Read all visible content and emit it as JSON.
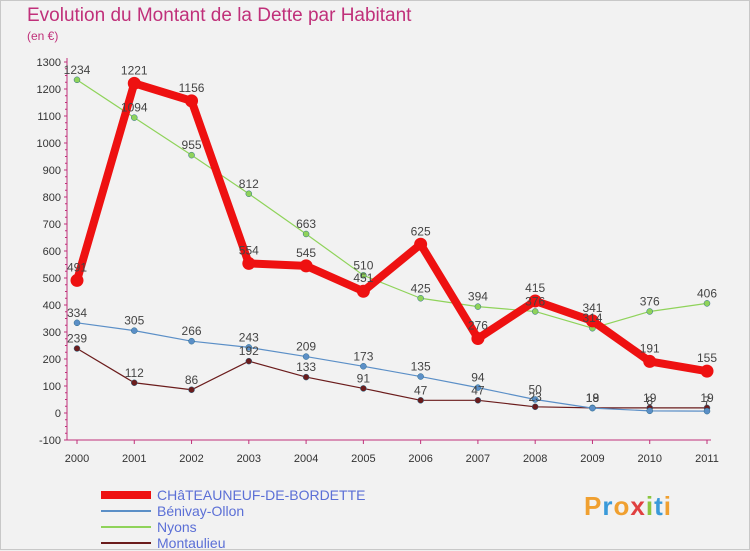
{
  "header": {
    "title": "Evolution du Montant de la Dette par Habitant",
    "subtitle": "(en €)"
  },
  "logo": {
    "letters": [
      "P",
      "r",
      "o",
      "x",
      "i",
      "t",
      "i"
    ],
    "colors": [
      "#f0a030",
      "#3a9ad9",
      "#f0a030",
      "#e04040",
      "#8cc63f",
      "#3a9ad9",
      "#f0a030"
    ]
  },
  "chart_data": {
    "type": "line",
    "x": [
      "2000",
      "2001",
      "2002",
      "2003",
      "2004",
      "2005",
      "2006",
      "2007",
      "2008",
      "2009",
      "2010",
      "2011"
    ],
    "ylim": [
      -100,
      1300
    ],
    "yticks": [
      "-100",
      "0",
      "100",
      "200",
      "300",
      "400",
      "500",
      "600",
      "700",
      "800",
      "900",
      "1000",
      "1100",
      "1200",
      "1300"
    ],
    "grid": false,
    "legend_position": "bottom-left",
    "series": [
      {
        "name": "Montaulieu",
        "color": "#6b1c1c",
        "width": 1.2,
        "values": [
          239,
          112,
          86,
          192,
          133,
          91,
          47,
          47,
          23,
          19,
          19,
          19
        ],
        "labels": [
          "239",
          "112",
          "86",
          "192",
          "133",
          "91",
          "47",
          "47",
          "23",
          "19",
          "19",
          "19"
        ]
      },
      {
        "name": "Bénivay-Ollon",
        "color": "#5b8fc7",
        "width": 1.2,
        "values": [
          334,
          305,
          266,
          243,
          209,
          173,
          135,
          94,
          50,
          18,
          8,
          7
        ],
        "labels": [
          "334",
          "305",
          "266",
          "243",
          "209",
          "173",
          "135",
          "94",
          "50",
          "18",
          "8",
          "7"
        ]
      },
      {
        "name": "Nyons",
        "color": "#8fd35a",
        "width": 1.2,
        "values": [
          1234,
          1094,
          955,
          812,
          663,
          510,
          425,
          394,
          376,
          314,
          376,
          406
        ],
        "labels": [
          "1234",
          "1094",
          "955",
          "812",
          "663",
          "510",
          "425",
          "394",
          "376",
          "314",
          "376",
          "406"
        ]
      },
      {
        "name": "CHâTEAUNEUF-DE-BORDETTE",
        "color": "#ee1111",
        "width": 8,
        "values": [
          491,
          1221,
          1156,
          554,
          545,
          451,
          625,
          276,
          415,
          341,
          191,
          155
        ],
        "labels": [
          "491",
          "1221",
          "1156",
          "554",
          "545",
          "451",
          "625",
          "276",
          "415",
          "341",
          "191",
          "155"
        ]
      }
    ],
    "legend_order": [
      "CHâTEAUNEUF-DE-BORDETTE",
      "Bénivay-Ollon",
      "Nyons",
      "Montaulieu"
    ]
  }
}
